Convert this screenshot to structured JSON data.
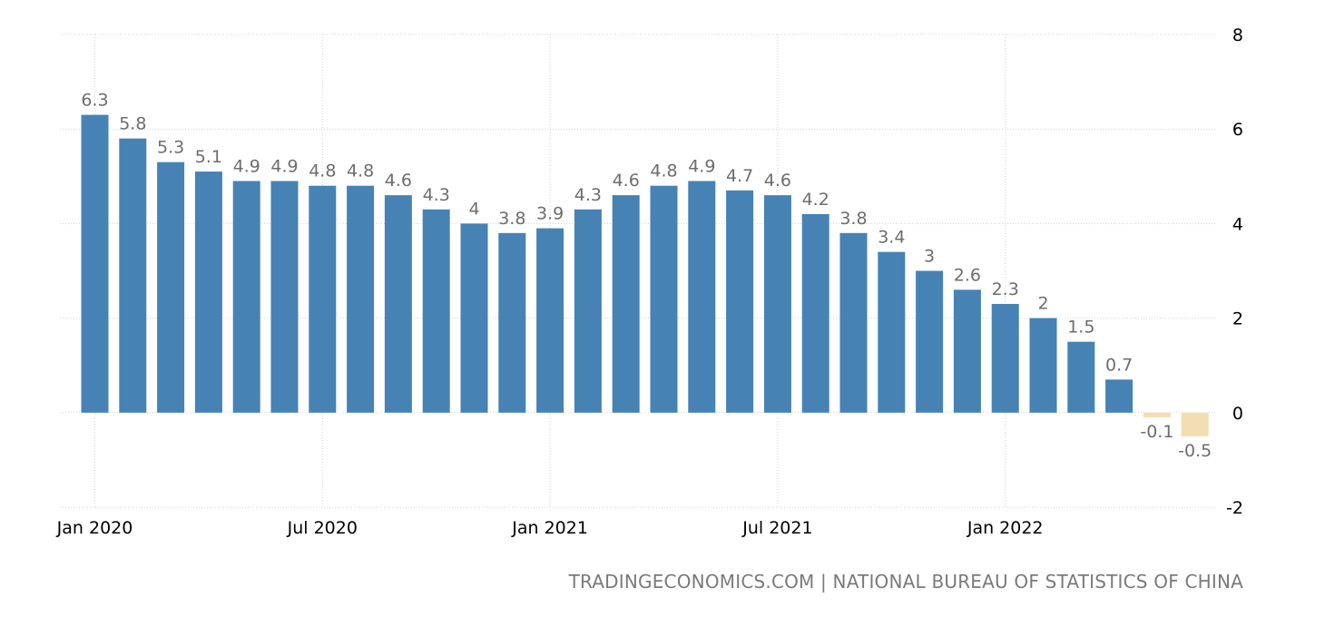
{
  "chart_data": {
    "type": "bar",
    "title": "",
    "xlabel": "",
    "ylabel": "",
    "categories": [
      "Jan 2020",
      "Feb 2020",
      "Mar 2020",
      "Apr 2020",
      "May 2020",
      "Jun 2020",
      "Jul 2020",
      "Aug 2020",
      "Sep 2020",
      "Oct 2020",
      "Nov 2020",
      "Dec 2020",
      "Jan 2021",
      "Feb 2021",
      "Mar 2021",
      "Apr 2021",
      "May 2021",
      "Jun 2021",
      "Jul 2021",
      "Aug 2021",
      "Sep 2021",
      "Oct 2021",
      "Nov 2021",
      "Dec 2021",
      "Jan 2022",
      "Feb 2022",
      "Mar 2022",
      "Apr 2022",
      "May 2022",
      "Jun 2022"
    ],
    "values": [
      6.3,
      5.8,
      5.3,
      5.1,
      4.9,
      4.9,
      4.8,
      4.8,
      4.6,
      4.3,
      4,
      3.8,
      3.9,
      4.3,
      4.6,
      4.8,
      4.9,
      4.7,
      4.6,
      4.2,
      3.8,
      3.4,
      3,
      2.6,
      2.3,
      2,
      1.5,
      0.7,
      -0.1,
      -0.5
    ],
    "value_labels": [
      "6.3",
      "5.8",
      "5.3",
      "5.1",
      "4.9",
      "4.9",
      "4.8",
      "4.8",
      "4.6",
      "4.3",
      "4",
      "3.8",
      "3.9",
      "4.3",
      "4.6",
      "4.8",
      "4.9",
      "4.7",
      "4.6",
      "4.2",
      "3.8",
      "3.4",
      "3",
      "2.6",
      "2.3",
      "2",
      "1.5",
      "0.7",
      "-0.1",
      "-0.5"
    ],
    "ylim": [
      -2,
      8
    ],
    "yticks": [
      8,
      6,
      4,
      2,
      0,
      -2
    ],
    "ytick_labels": [
      "8",
      "6",
      "4",
      "2",
      "0",
      "-2"
    ],
    "xticks": [
      {
        "index": 0,
        "label": "Jan 2020"
      },
      {
        "index": 6,
        "label": "Jul 2020"
      },
      {
        "index": 12,
        "label": "Jan 2021"
      },
      {
        "index": 18,
        "label": "Jul 2021"
      },
      {
        "index": 24,
        "label": "Jan 2022"
      }
    ],
    "grid": true,
    "legend": "none",
    "colors": {
      "positive": "#4682b4",
      "negative": "#f2deb2",
      "label": "#6d6d6d"
    }
  },
  "footer": {
    "source": "TRADINGECONOMICS.COM | NATIONAL BUREAU OF STATISTICS OF CHINA"
  }
}
